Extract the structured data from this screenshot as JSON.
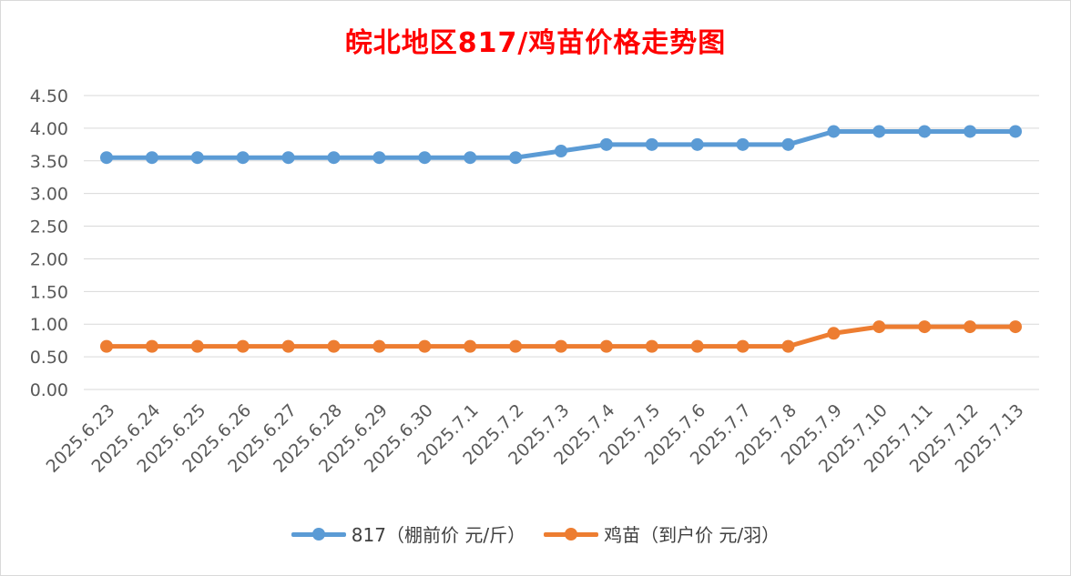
{
  "chart_data": {
    "type": "line",
    "title": "皖北地区817/鸡苗价格走势图",
    "categories": [
      "2025.6.23",
      "2025.6.24",
      "2025.6.25",
      "2025.6.26",
      "2025.6.27",
      "2025.6.28",
      "2025.6.29",
      "2025.6.30",
      "2025.7.1",
      "2025.7.2",
      "2025.7.3",
      "2025.7.4",
      "2025.7.5",
      "2025.7.6",
      "2025.7.7",
      "2025.7.8",
      "2025.7.9",
      "2025.7.10",
      "2025.7.11",
      "2025.7.12",
      "2025.7.13"
    ],
    "series": [
      {
        "name": "817（棚前价 元/斤）",
        "color": "#5b9bd5",
        "values": [
          3.55,
          3.55,
          3.55,
          3.55,
          3.55,
          3.55,
          3.55,
          3.55,
          3.55,
          3.55,
          3.65,
          3.75,
          3.75,
          3.75,
          3.75,
          3.75,
          3.95,
          3.95,
          3.95,
          3.95,
          3.95
        ]
      },
      {
        "name": "鸡苗（到户价 元/羽）",
        "color": "#ed7d31",
        "values": [
          0.66,
          0.66,
          0.66,
          0.66,
          0.66,
          0.66,
          0.66,
          0.66,
          0.66,
          0.66,
          0.66,
          0.66,
          0.66,
          0.66,
          0.66,
          0.66,
          0.86,
          0.96,
          0.96,
          0.96,
          0.96
        ]
      }
    ],
    "ylim": [
      0,
      4.5
    ],
    "yticks": [
      "0.00",
      "0.50",
      "1.00",
      "1.50",
      "2.00",
      "2.50",
      "3.00",
      "3.50",
      "4.00",
      "4.50"
    ],
    "grid": true,
    "legend": "bottom"
  }
}
